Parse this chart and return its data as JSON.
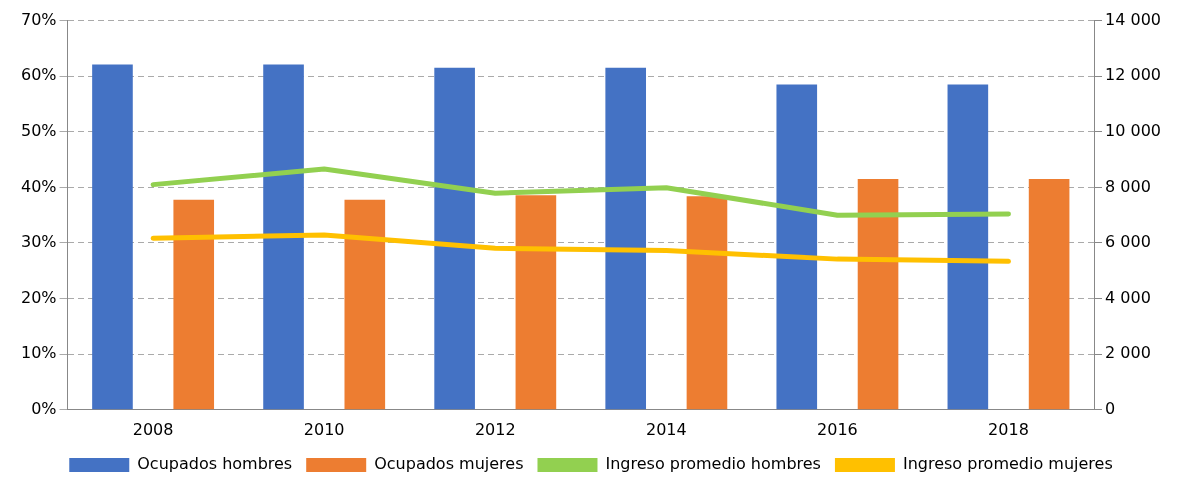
{
  "chart_data": {
    "type": "bar",
    "categories": [
      "2008",
      "2010",
      "2012",
      "2014",
      "2016",
      "2018"
    ],
    "series": [
      {
        "name": "Ocupados hombres",
        "color": "#4472c4",
        "values": [
          62.1,
          62.1,
          61.5,
          61.5,
          58.5,
          58.5
        ]
      },
      {
        "name": "Ocupados mujeres",
        "color": "#ed7d31",
        "values": [
          37.8,
          37.8,
          38.6,
          38.4,
          41.5,
          41.5
        ]
      },
      {
        "name": "Ingreso promedio hombres",
        "type": "line",
        "axis": "y2",
        "color": "#92d050",
        "values": [
          8100,
          8660,
          7790,
          7990,
          7000,
          7040
        ]
      },
      {
        "name": "Ingreso promedio mujeres",
        "type": "line",
        "axis": "y2",
        "color": "#ffc000",
        "values": [
          6170,
          6290,
          5810,
          5730,
          5420,
          5340
        ]
      }
    ],
    "ylim": [
      0,
      70
    ],
    "yticks": [
      {
        "value": 0,
        "label": "0%"
      },
      {
        "value": 10,
        "label": "10%"
      },
      {
        "value": 20,
        "label": "20%"
      },
      {
        "value": 30,
        "label": "30%"
      },
      {
        "value": 40,
        "label": "40%"
      },
      {
        "value": 50,
        "label": "50%"
      },
      {
        "value": 60,
        "label": "60%"
      },
      {
        "value": 70,
        "label": "70%"
      }
    ],
    "y2lim": [
      0,
      14000
    ],
    "y2ticks": [
      0,
      {
        "value": 2000,
        "label": "2 000"
      },
      {
        "value": 4000,
        "label": "4 000"
      },
      {
        "value": 6000,
        "label": "6 000"
      },
      {
        "value": 8000,
        "label": "8 000"
      },
      {
        "value": 10000,
        "label": "10 000"
      },
      {
        "value": 12000,
        "label": "12 000"
      },
      {
        "value": 14000,
        "label": "14 000"
      }
    ],
    "grid": "y",
    "legend": "bottom",
    "marker": "none",
    "line_style": "solid"
  }
}
